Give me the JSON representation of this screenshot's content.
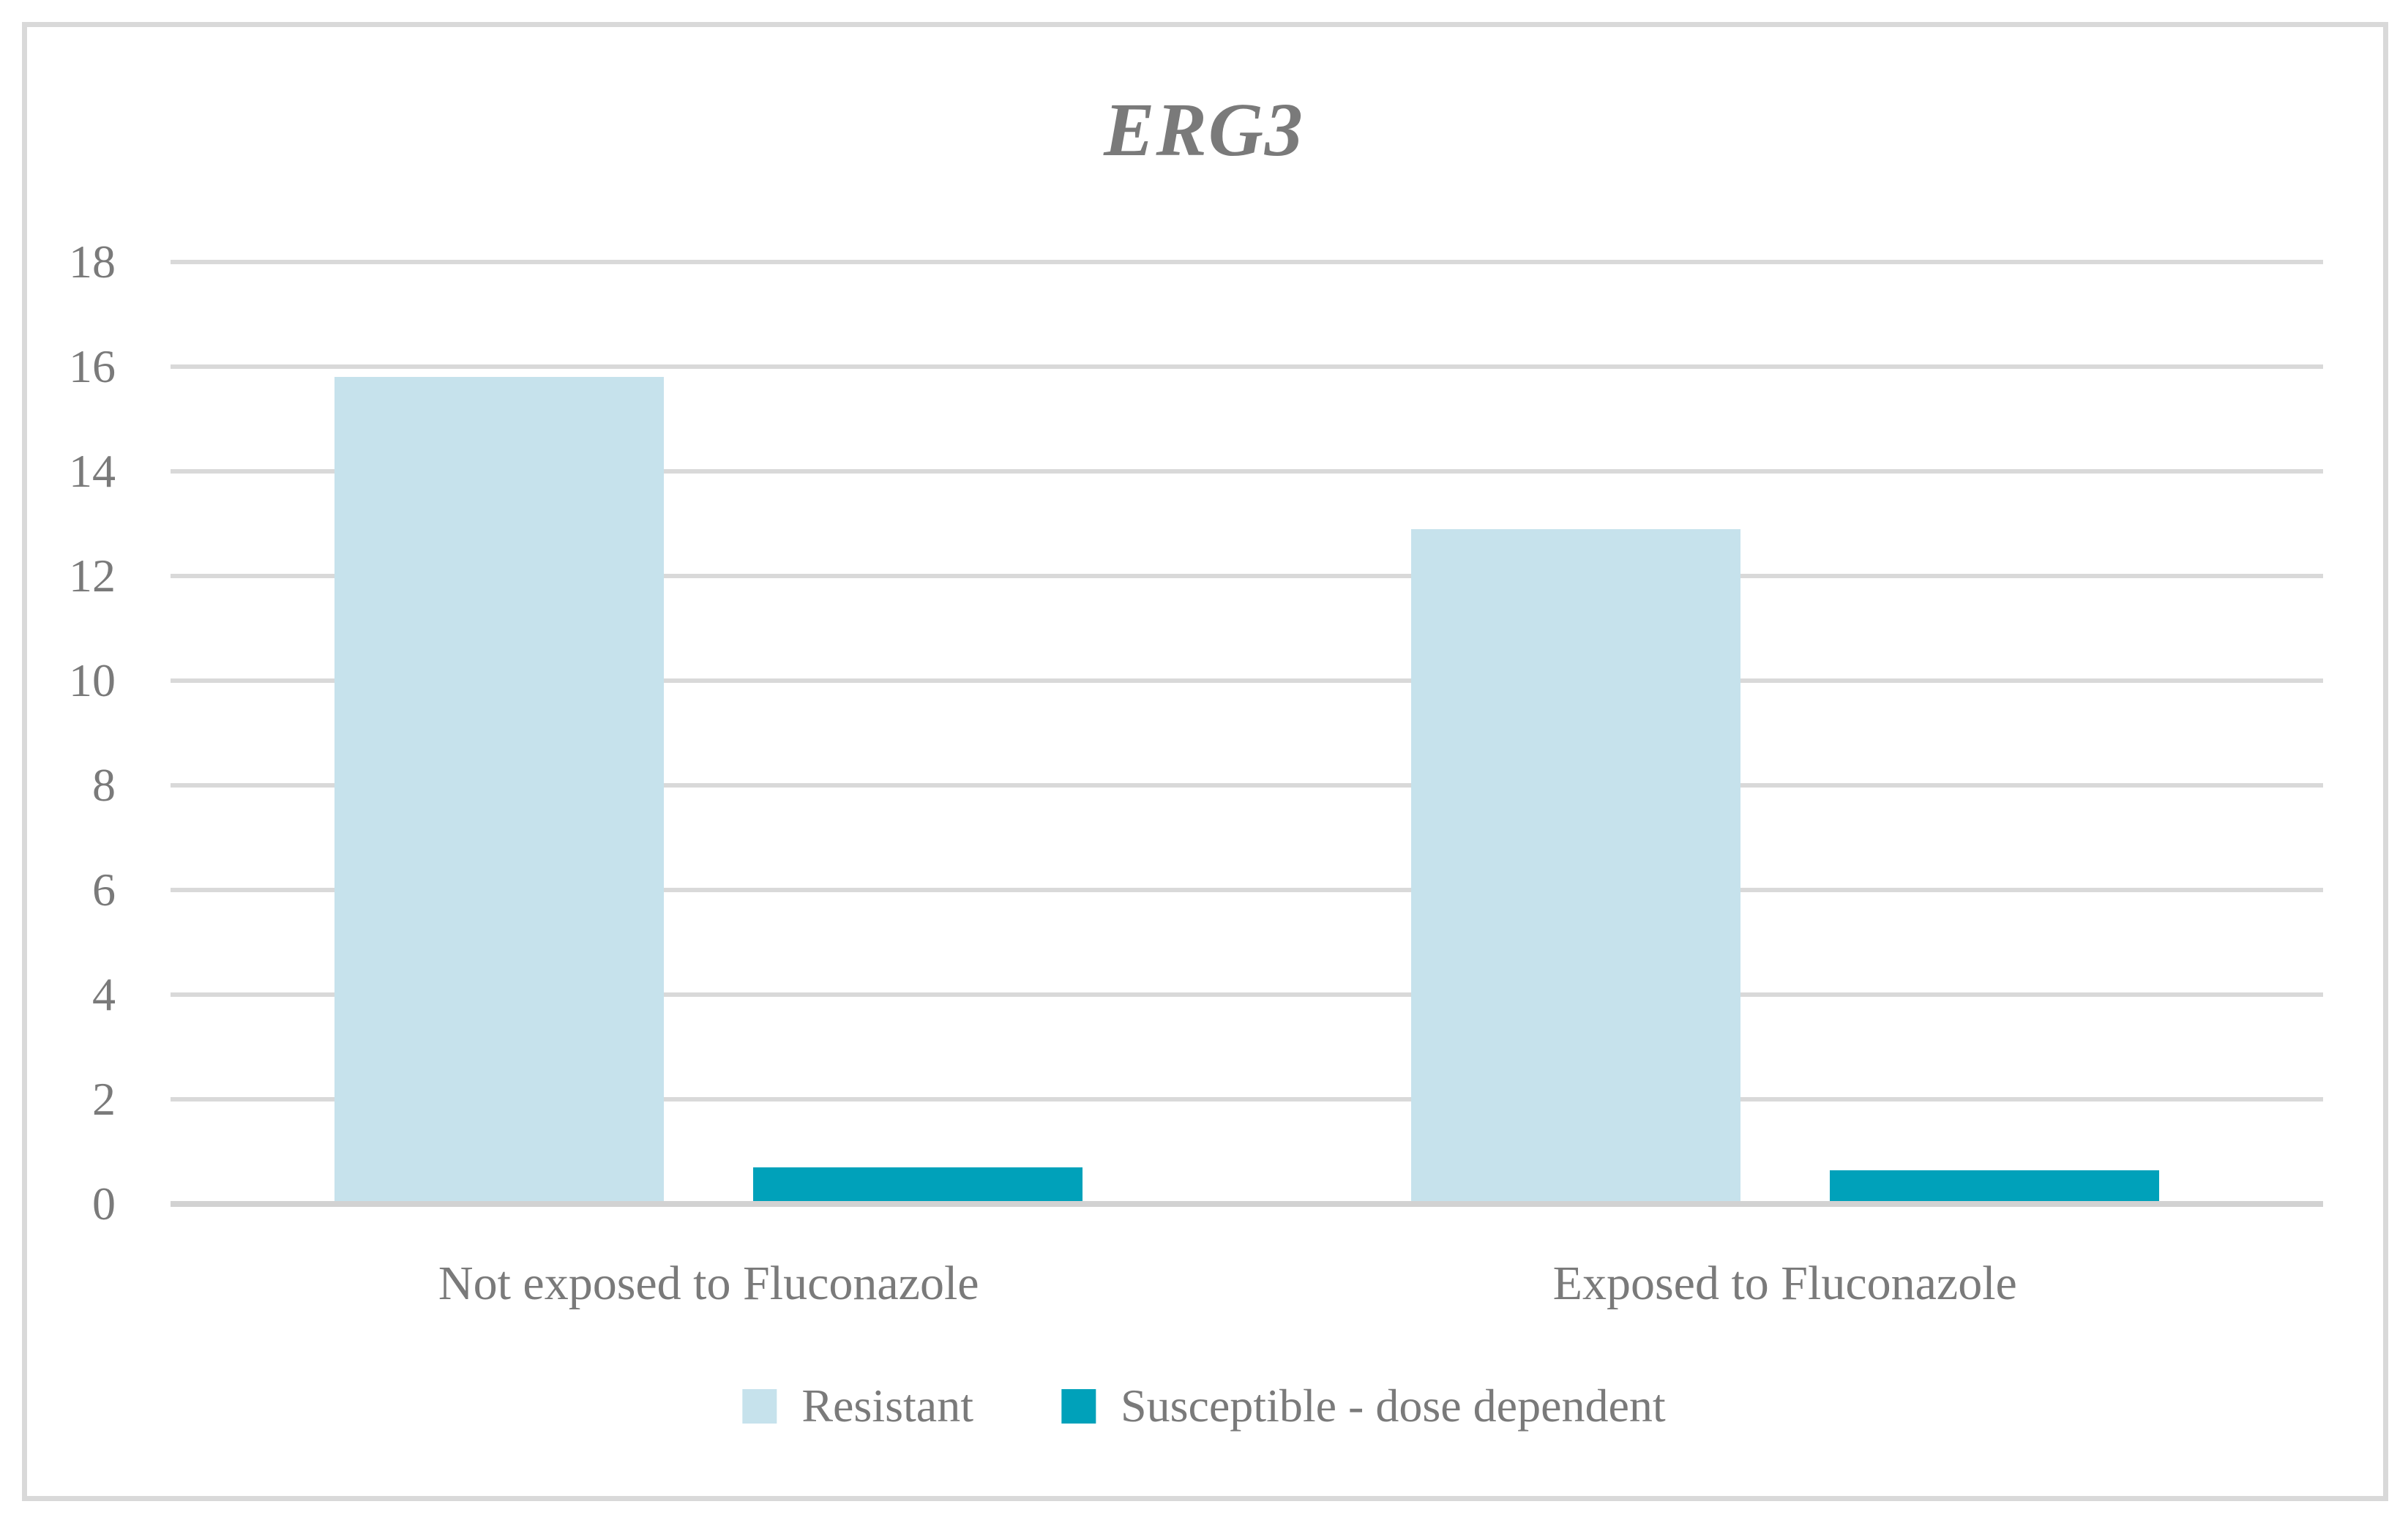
{
  "chart_data": {
    "type": "bar",
    "title": "ERG3",
    "categories": [
      "Not exposed to Fluconazole",
      "Exposed to Fluconazole"
    ],
    "series": [
      {
        "name": "Resistant",
        "color": "#c6e2ec",
        "values": [
          15.8,
          12.9
        ]
      },
      {
        "name": "Susceptible - dose dependent",
        "color": "#00a1ba",
        "values": [
          0.7,
          0.65
        ]
      }
    ],
    "ylim": [
      0,
      18
    ],
    "yticks": [
      0,
      2,
      4,
      6,
      8,
      10,
      12,
      14,
      16,
      18
    ],
    "xlabel": "",
    "ylabel": "",
    "grid": true,
    "legend_position": "bottom",
    "colors": {
      "text": "#7a7a7a",
      "gridline": "#d9d9d9",
      "axis_line": "#d2d2d2",
      "frame_border": "#d9d9d9",
      "background": "#ffffff"
    }
  }
}
